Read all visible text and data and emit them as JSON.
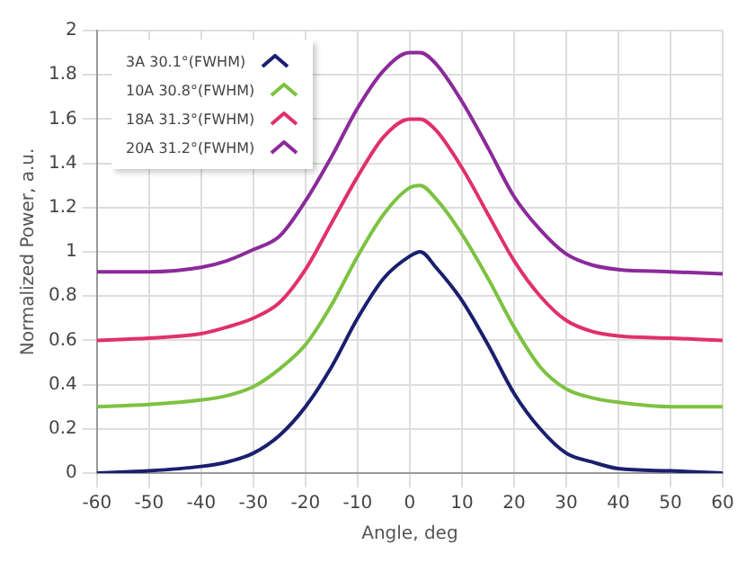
{
  "chart_data": {
    "type": "line",
    "xlabel": "Angle, deg",
    "ylabel": "Normalized Power, a.u.",
    "x": [
      -60,
      -50,
      -40,
      -35,
      -30,
      -25,
      -20,
      -15,
      -10,
      -5,
      0,
      2,
      5,
      10,
      15,
      20,
      25,
      30,
      35,
      40,
      50,
      60
    ],
    "series": [
      {
        "name": "3A 30.1°(FWHM)",
        "color": "#1a1f6e",
        "values": [
          0.0,
          0.01,
          0.03,
          0.05,
          0.09,
          0.17,
          0.3,
          0.48,
          0.7,
          0.88,
          0.98,
          1.0,
          0.93,
          0.78,
          0.58,
          0.36,
          0.2,
          0.09,
          0.05,
          0.02,
          0.01,
          0.0
        ]
      },
      {
        "name": "10A 30.8°(FWHM)",
        "color": "#7dc242",
        "values": [
          0.3,
          0.31,
          0.33,
          0.35,
          0.39,
          0.47,
          0.58,
          0.76,
          0.98,
          1.17,
          1.29,
          1.3,
          1.24,
          1.08,
          0.88,
          0.66,
          0.48,
          0.38,
          0.34,
          0.32,
          0.3,
          0.3
        ]
      },
      {
        "name": "18A 31.3°(FWHM)",
        "color": "#e0306e",
        "values": [
          0.6,
          0.61,
          0.63,
          0.66,
          0.7,
          0.77,
          0.92,
          1.13,
          1.34,
          1.52,
          1.6,
          1.6,
          1.55,
          1.38,
          1.17,
          0.96,
          0.8,
          0.69,
          0.64,
          0.62,
          0.61,
          0.6
        ]
      },
      {
        "name": "20A 31.2°(FWHM)",
        "color": "#8b2a9a",
        "values": [
          0.91,
          0.91,
          0.93,
          0.96,
          1.01,
          1.07,
          1.23,
          1.43,
          1.65,
          1.82,
          1.9,
          1.9,
          1.85,
          1.68,
          1.47,
          1.25,
          1.1,
          0.99,
          0.94,
          0.92,
          0.91,
          0.9
        ]
      }
    ],
    "xlim": [
      -60,
      60
    ],
    "xticks": [
      -60,
      -50,
      -40,
      -30,
      -20,
      -10,
      0,
      10,
      20,
      30,
      40,
      50,
      60
    ],
    "ylim": [
      0,
      2
    ],
    "yticks": [
      0,
      0.2,
      0.4,
      0.6,
      0.8,
      1,
      1.2,
      1.4,
      1.6,
      1.8,
      2
    ],
    "grid": true,
    "legend": "top left",
    "marker": "none",
    "line_style": "solid"
  }
}
